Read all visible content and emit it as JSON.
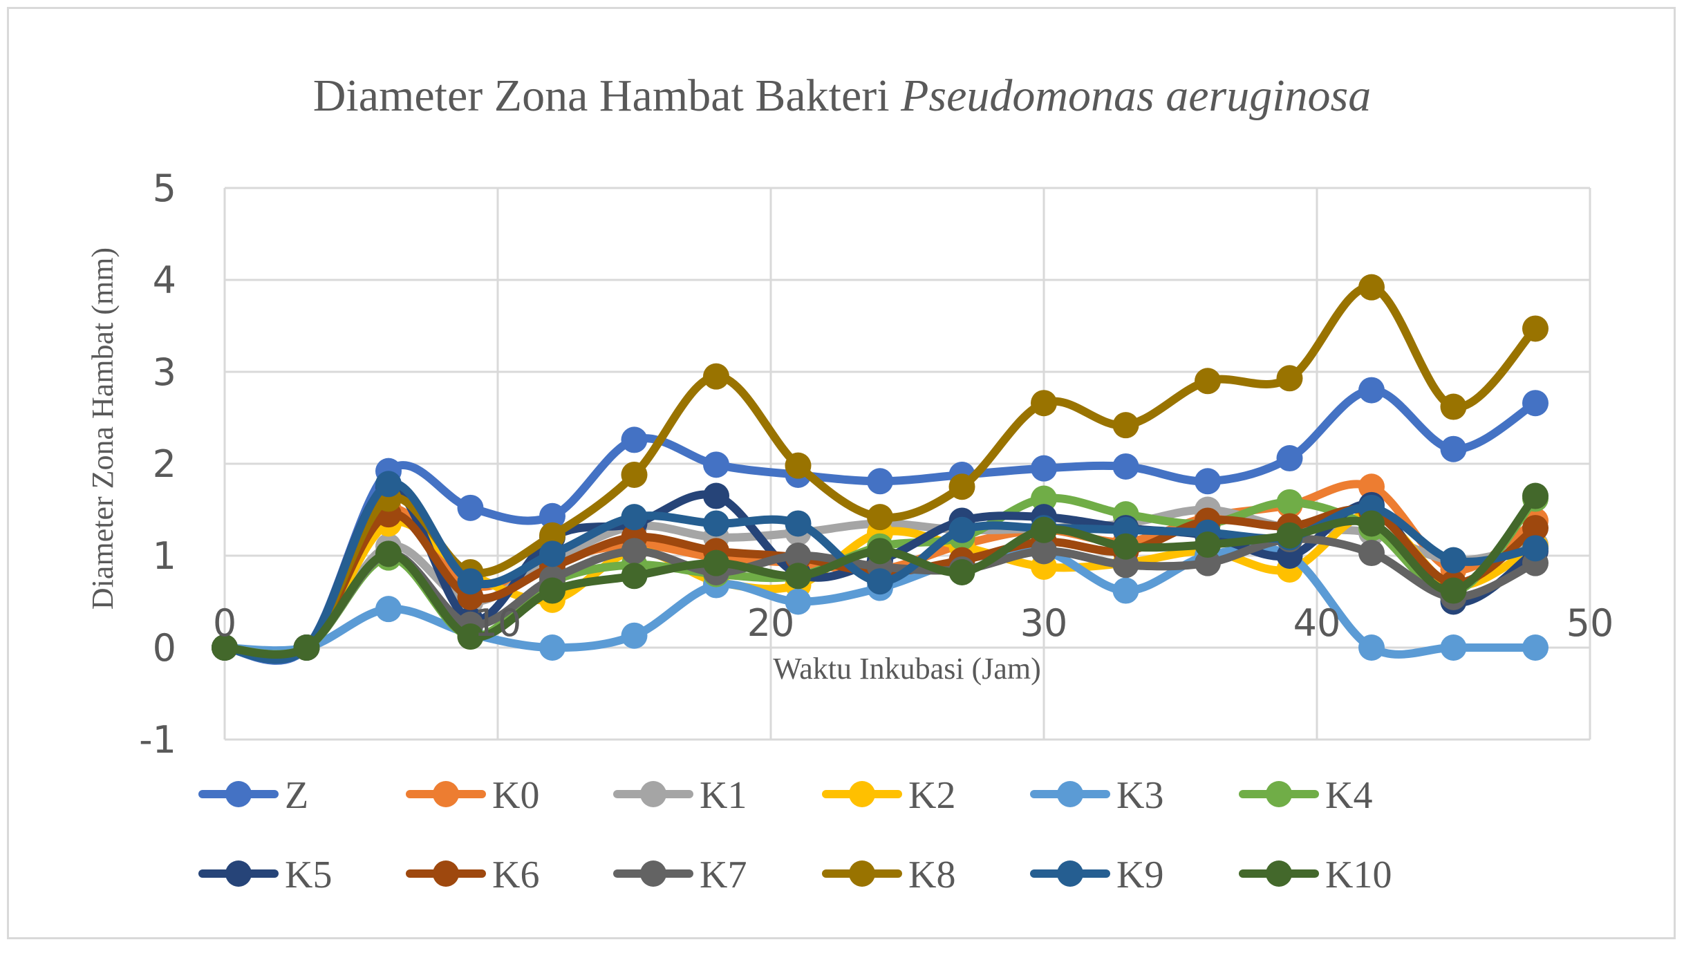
{
  "chart_data": {
    "type": "line",
    "title_main": "Diameter Zona Hambat Bakteri ",
    "title_italic": "Pseudomonas aeruginosa",
    "xlabel": "Waktu Inkubasi (Jam)",
    "ylabel": "Diameter Zona Hambat (mm)",
    "xlim": [
      0,
      50
    ],
    "ylim": [
      -1,
      5
    ],
    "xticks": [
      0,
      10,
      20,
      30,
      40,
      50
    ],
    "yticks": [
      -1,
      0,
      1,
      2,
      3,
      4,
      5
    ],
    "grid": true,
    "legend_position": "bottom",
    "smooth": true,
    "x": [
      0,
      3,
      6,
      9,
      12,
      15,
      18,
      21,
      24,
      27,
      30,
      33,
      36,
      39,
      42,
      45,
      48
    ],
    "series": [
      {
        "name": "Z",
        "color": "#4472C4",
        "values": [
          0,
          0,
          1.92,
          1.52,
          1.43,
          2.26,
          1.99,
          1.88,
          1.81,
          1.88,
          1.95,
          1.97,
          1.81,
          2.06,
          2.8,
          2.16,
          2.66
        ]
      },
      {
        "name": "K0",
        "color": "#ED7D31",
        "values": [
          0,
          0,
          1.5,
          0.68,
          0.95,
          1.12,
          0.98,
          0.92,
          0.85,
          1.12,
          1.28,
          1.15,
          1.42,
          1.55,
          1.75,
          0.85,
          1.38
        ]
      },
      {
        "name": "K1",
        "color": "#A5A5A5",
        "values": [
          0,
          0,
          1.1,
          0.5,
          0.95,
          1.32,
          1.2,
          1.25,
          1.35,
          1.28,
          1.3,
          1.35,
          1.5,
          1.3,
          1.25,
          0.95,
          1.12
        ]
      },
      {
        "name": "K2",
        "color": "#FFC000",
        "values": [
          0,
          0,
          1.35,
          0.8,
          0.52,
          1.05,
          0.72,
          0.68,
          1.25,
          1.1,
          0.88,
          0.92,
          1.05,
          0.85,
          1.45,
          0.68,
          1.1
        ]
      },
      {
        "name": "K3",
        "color": "#5B9BD5",
        "values": [
          0,
          0,
          0.42,
          0.15,
          0,
          0.13,
          0.68,
          0.5,
          0.65,
          0.95,
          1.05,
          0.62,
          1.0,
          1.0,
          0,
          0,
          0
        ]
      },
      {
        "name": "K4",
        "color": "#70AD47",
        "values": [
          0,
          0,
          0.98,
          0.12,
          0.72,
          0.9,
          0.8,
          0.78,
          1.1,
          1.2,
          1.62,
          1.45,
          1.35,
          1.58,
          1.3,
          0.6,
          1.62
        ]
      },
      {
        "name": "K5",
        "color": "#264478",
        "values": [
          0,
          0,
          1.75,
          0.3,
          1.2,
          1.35,
          1.65,
          0.8,
          0.95,
          1.38,
          1.42,
          1.3,
          1.22,
          1.0,
          1.55,
          0.5,
          1.05
        ]
      },
      {
        "name": "K6",
        "color": "#9E480E",
        "values": [
          0,
          0,
          1.45,
          0.55,
          0.88,
          1.2,
          1.05,
          0.98,
          0.82,
          0.95,
          1.15,
          1.05,
          1.38,
          1.32,
          1.48,
          0.7,
          1.3
        ]
      },
      {
        "name": "K7",
        "color": "#636363",
        "values": [
          0,
          0,
          1.02,
          0.25,
          0.75,
          1.05,
          0.82,
          1.0,
          0.88,
          0.85,
          1.05,
          0.9,
          0.92,
          1.18,
          1.03,
          0.55,
          0.92
        ]
      },
      {
        "name": "K8",
        "color": "#997300",
        "values": [
          0,
          0,
          1.62,
          0.82,
          1.22,
          1.88,
          2.95,
          1.98,
          1.42,
          1.75,
          2.66,
          2.42,
          2.9,
          2.93,
          3.92,
          2.62,
          3.47
        ]
      },
      {
        "name": "K9",
        "color": "#255E91",
        "values": [
          0,
          0,
          1.78,
          0.72,
          1.02,
          1.42,
          1.35,
          1.35,
          0.72,
          1.28,
          1.3,
          1.28,
          1.25,
          1.2,
          1.52,
          0.95,
          1.08
        ]
      },
      {
        "name": "K10",
        "color": "#43682B",
        "values": [
          0,
          0,
          1.02,
          0.12,
          0.62,
          0.78,
          0.92,
          0.78,
          1.05,
          0.82,
          1.28,
          1.1,
          1.12,
          1.22,
          1.35,
          0.62,
          1.65
        ]
      }
    ]
  }
}
